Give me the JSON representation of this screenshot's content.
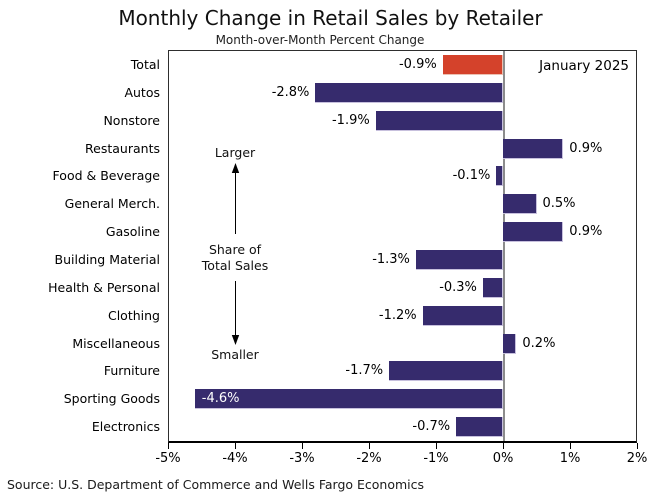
{
  "title": "Monthly Change in Retail Sales by Retailer",
  "subtitle": "Month-over-Month Percent Change",
  "date_label": "January 2025",
  "source": "Source: U.S. Department of Commerce and Wells Fargo Economics",
  "annotations": {
    "larger": "Larger",
    "share_line1": "Share of",
    "share_line2": "Total Sales",
    "smaller": "Smaller"
  },
  "colors": {
    "bar": "#362B6D",
    "highlight_bar": "#D4422B",
    "zero_line": "#8C8C8C",
    "axis": "#000000"
  },
  "chart_data": {
    "type": "bar",
    "orientation": "horizontal",
    "title": "Monthly Change in Retail Sales by Retailer",
    "subtitle": "Month-over-Month Percent Change",
    "xlabel": "",
    "ylabel": "",
    "categories": [
      "Total",
      "Autos",
      "Nonstore",
      "Restaurants",
      "Food & Beverage",
      "General Merch.",
      "Gasoline",
      "Building Material",
      "Health & Personal",
      "Clothing",
      "Miscellaneous",
      "Furniture",
      "Sporting Goods",
      "Electronics"
    ],
    "values": [
      -0.9,
      -2.8,
      -1.9,
      0.9,
      -0.1,
      0.5,
      0.9,
      -1.3,
      -0.3,
      -1.2,
      0.2,
      -1.7,
      -4.6,
      -0.7
    ],
    "value_labels": [
      "-0.9%",
      "-2.8%",
      "-1.9%",
      "0.9%",
      "-0.1%",
      "0.5%",
      "0.9%",
      "-1.3%",
      "-0.3%",
      "-1.2%",
      "0.2%",
      "-1.7%",
      "-4.6%",
      "-0.7%"
    ],
    "highlight_index": 0,
    "inside_label_index": 12,
    "xlim": [
      -5,
      2
    ],
    "xtick_values": [
      -5,
      -4,
      -3,
      -2,
      -1,
      0,
      1,
      2
    ],
    "xtick_labels": [
      "-5%",
      "-4%",
      "-3%",
      "-2%",
      "-1%",
      "0%",
      "1%",
      "2%"
    ],
    "grid": false,
    "legend": false,
    "annotation_top_right": "January 2025"
  }
}
